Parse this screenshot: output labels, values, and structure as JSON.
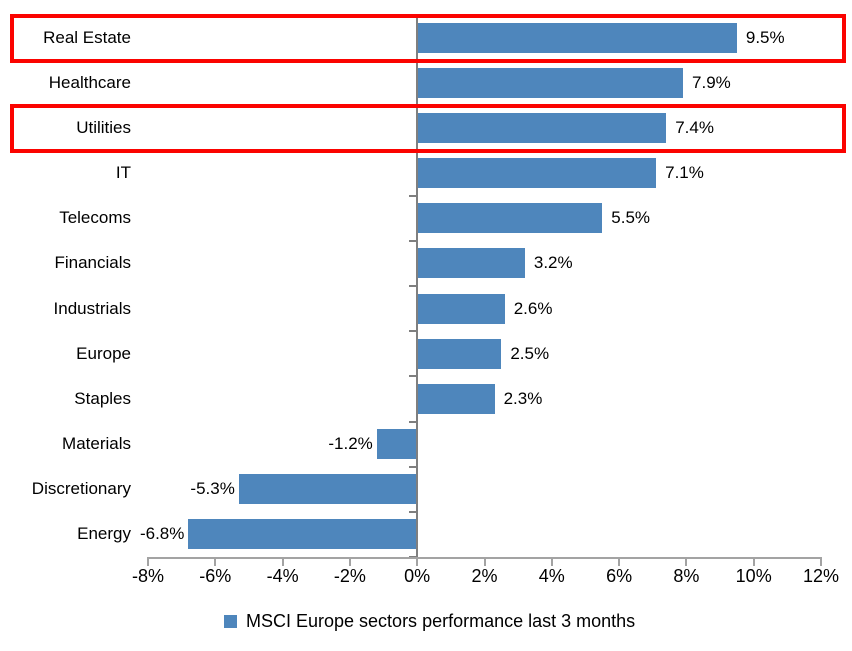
{
  "chart_data": {
    "type": "bar",
    "orientation": "horizontal",
    "title": "",
    "categories": [
      "Real Estate",
      "Healthcare",
      "Utilities",
      "IT",
      "Telecoms",
      "Financials",
      "Industrials",
      "Europe",
      "Staples",
      "Materials",
      "Discretionary",
      "Energy"
    ],
    "values": [
      9.5,
      7.9,
      7.4,
      7.1,
      5.5,
      3.2,
      2.6,
      2.5,
      2.3,
      -1.2,
      -5.3,
      -6.8
    ],
    "value_labels": [
      "9.5%",
      "7.9%",
      "7.4%",
      "7.1%",
      "5.5%",
      "3.2%",
      "2.6%",
      "2.5%",
      "2.3%",
      "-1.2%",
      "-5.3%",
      "-6.8%"
    ],
    "x_tick_values": [
      -8,
      -6,
      -4,
      -2,
      0,
      2,
      4,
      6,
      8,
      10,
      12
    ],
    "x_tick_labels": [
      "-8%",
      "-6%",
      "-4%",
      "-2%",
      "0%",
      "2%",
      "4%",
      "6%",
      "8%",
      "10%",
      "12%"
    ],
    "xlim": [
      -8,
      12
    ],
    "grid": false,
    "legend": "MSCI Europe sectors performance last 3 months",
    "legend_position": "bottom",
    "highlighted_categories": [
      "Real Estate",
      "Utilities"
    ],
    "colors": {
      "bar": "#4E86BC",
      "highlight_border": "#FB0300",
      "value_axis_line": "#A3A3A3",
      "category_axis_line": "#7F7F7F",
      "text": "#000000"
    }
  }
}
